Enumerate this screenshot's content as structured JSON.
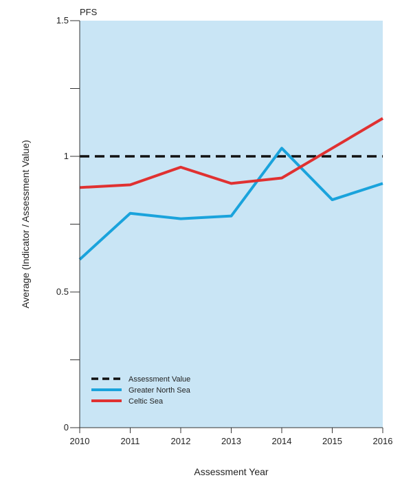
{
  "chart_data": {
    "type": "line",
    "title": "PFS",
    "xlabel": "Assessment Year",
    "ylabel": "Average (Indicator / Assessment Value)",
    "x": [
      2010,
      2011,
      2012,
      2013,
      2014,
      2015,
      2016
    ],
    "xlim": [
      2010,
      2016
    ],
    "ylim": [
      0,
      1.5
    ],
    "yticks": [
      0,
      0.25,
      0.5,
      0.75,
      1,
      1.25,
      1.5
    ],
    "ytick_labels": [
      "0",
      "",
      "0.5",
      "",
      "1",
      "",
      "1.5"
    ],
    "grid": false,
    "background_color": "#c9e5f5",
    "legend_position": "bottom-left",
    "series": [
      {
        "name": "Assessment Value",
        "values": [
          1.0,
          1.0,
          1.0,
          1.0,
          1.0,
          1.0,
          1.0
        ],
        "color": "#111111",
        "style": "dashed"
      },
      {
        "name": "Greater North Sea",
        "values": [
          0.62,
          0.79,
          0.77,
          0.78,
          1.03,
          0.84,
          0.9
        ],
        "color": "#1aa3dc",
        "style": "solid"
      },
      {
        "name": "Celtic Sea",
        "values": [
          0.885,
          0.895,
          0.96,
          0.9,
          0.92,
          1.03,
          1.14
        ],
        "color": "#e03131",
        "style": "solid"
      }
    ]
  }
}
